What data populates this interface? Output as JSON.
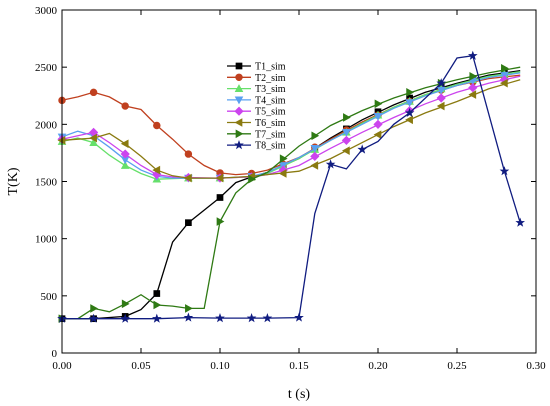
{
  "chart_data": {
    "type": "line",
    "xlabel": "t (s)",
    "ylabel": "T(K)",
    "xlim": [
      0,
      0.3
    ],
    "ylim": [
      0,
      3000
    ],
    "xticks": [
      0,
      0.05,
      0.1,
      0.15,
      0.2,
      0.25,
      0.3
    ],
    "xtick_labels": [
      "0.00",
      "0.05",
      "0.10",
      "0.15",
      "0.20",
      "0.25",
      "0.30"
    ],
    "yticks": [
      0,
      500,
      1000,
      1500,
      2000,
      2500,
      3000
    ],
    "ytick_labels": [
      "0",
      "500",
      "1000",
      "1500",
      "2000",
      "2500",
      "3000"
    ],
    "grid": false,
    "legend_position": "upper-center",
    "series": [
      {
        "name": "T1_sim",
        "color": "#000000",
        "marker": "square",
        "x": [
          0,
          0.02,
          0.04,
          0.05,
          0.06,
          0.07,
          0.08,
          0.09,
          0.1,
          0.11,
          0.12,
          0.13,
          0.15,
          0.17,
          0.19,
          0.21,
          0.23,
          0.25,
          0.27,
          0.29
        ],
        "y": [
          300,
          300,
          320,
          380,
          520,
          970,
          1140,
          1250,
          1360,
          1490,
          1540,
          1580,
          1700,
          1880,
          2040,
          2170,
          2280,
          2360,
          2430,
          2470
        ],
        "marker_x": [
          0,
          0.02,
          0.04,
          0.06,
          0.08,
          0.1,
          0.12,
          0.14,
          0.16,
          0.18,
          0.2,
          0.22,
          0.24,
          0.26,
          0.28
        ],
        "marker_y": [
          300,
          300,
          320,
          520,
          1140,
          1360,
          1540,
          1630,
          1790,
          1960,
          2110,
          2230,
          2330,
          2400,
          2460
        ]
      },
      {
        "name": "T2_sim",
        "color": "#c0401f",
        "marker": "circle",
        "x": [
          0,
          0.01,
          0.02,
          0.03,
          0.04,
          0.05,
          0.06,
          0.07,
          0.08,
          0.09,
          0.1,
          0.11,
          0.12,
          0.13,
          0.15,
          0.17,
          0.19,
          0.21,
          0.23,
          0.25,
          0.27,
          0.29
        ],
        "y": [
          2210,
          2240,
          2280,
          2240,
          2160,
          2130,
          1990,
          1870,
          1740,
          1640,
          1575,
          1560,
          1570,
          1600,
          1710,
          1870,
          2020,
          2150,
          2260,
          2340,
          2400,
          2430
        ],
        "marker_x": [
          0,
          0.02,
          0.04,
          0.06,
          0.08,
          0.1,
          0.12,
          0.14,
          0.16,
          0.18,
          0.2,
          0.22,
          0.24,
          0.26,
          0.28
        ],
        "marker_y": [
          2210,
          2280,
          2160,
          1990,
          1740,
          1575,
          1570,
          1650,
          1800,
          1950,
          2080,
          2200,
          2300,
          2370,
          2420
        ]
      },
      {
        "name": "T3_sim",
        "color": "#66e06a",
        "marker": "triangle-up",
        "x": [
          0,
          0.01,
          0.02,
          0.03,
          0.04,
          0.05,
          0.06,
          0.07,
          0.08,
          0.1,
          0.12,
          0.13,
          0.15,
          0.17,
          0.19,
          0.21,
          0.23,
          0.25,
          0.27,
          0.29
        ],
        "y": [
          1850,
          1880,
          1840,
          1730,
          1640,
          1570,
          1520,
          1525,
          1530,
          1530,
          1540,
          1570,
          1700,
          1860,
          2010,
          2150,
          2260,
          2350,
          2420,
          2460
        ],
        "marker_x": [
          0,
          0.02,
          0.04,
          0.06,
          0.08,
          0.1,
          0.12,
          0.14,
          0.16,
          0.18,
          0.2,
          0.22,
          0.24,
          0.26,
          0.28
        ],
        "marker_y": [
          1850,
          1840,
          1640,
          1520,
          1530,
          1530,
          1540,
          1630,
          1780,
          1930,
          2080,
          2200,
          2310,
          2390,
          2440
        ]
      },
      {
        "name": "T4_sim",
        "color": "#5aa0f0",
        "marker": "triangle-down",
        "x": [
          0,
          0.01,
          0.02,
          0.03,
          0.04,
          0.05,
          0.06,
          0.07,
          0.08,
          0.1,
          0.12,
          0.13,
          0.15,
          0.17,
          0.19,
          0.21,
          0.23,
          0.25,
          0.27,
          0.29
        ],
        "y": [
          1890,
          1940,
          1900,
          1800,
          1690,
          1600,
          1545,
          1530,
          1530,
          1530,
          1545,
          1580,
          1710,
          1860,
          2000,
          2140,
          2250,
          2340,
          2410,
          2450
        ],
        "marker_x": [
          0,
          0.02,
          0.04,
          0.06,
          0.08,
          0.1,
          0.12,
          0.14,
          0.16,
          0.18,
          0.2,
          0.22,
          0.24,
          0.26,
          0.28
        ],
        "marker_y": [
          1890,
          1900,
          1690,
          1545,
          1530,
          1530,
          1545,
          1640,
          1790,
          1930,
          2070,
          2190,
          2300,
          2380,
          2430
        ]
      },
      {
        "name": "T5_sim",
        "color": "#cc44ee",
        "marker": "diamond",
        "x": [
          0,
          0.01,
          0.02,
          0.03,
          0.04,
          0.05,
          0.06,
          0.07,
          0.08,
          0.1,
          0.12,
          0.13,
          0.15,
          0.17,
          0.19,
          0.21,
          0.23,
          0.25,
          0.27,
          0.29
        ],
        "y": [
          1870,
          1900,
          1930,
          1840,
          1740,
          1640,
          1560,
          1540,
          1535,
          1530,
          1540,
          1560,
          1640,
          1790,
          1930,
          2060,
          2180,
          2280,
          2360,
          2420
        ],
        "marker_x": [
          0,
          0.02,
          0.04,
          0.06,
          0.08,
          0.1,
          0.12,
          0.14,
          0.16,
          0.18,
          0.2,
          0.22,
          0.24,
          0.26,
          0.28
        ],
        "marker_y": [
          1870,
          1930,
          1740,
          1560,
          1535,
          1530,
          1540,
          1600,
          1720,
          1860,
          2000,
          2120,
          2230,
          2320,
          2390
        ]
      },
      {
        "name": "T6_sim",
        "color": "#8a7a10",
        "marker": "triangle-left",
        "x": [
          0,
          0.01,
          0.02,
          0.03,
          0.04,
          0.05,
          0.06,
          0.07,
          0.08,
          0.1,
          0.12,
          0.13,
          0.15,
          0.17,
          0.19,
          0.21,
          0.23,
          0.25,
          0.27,
          0.29
        ],
        "y": [
          1860,
          1870,
          1880,
          1920,
          1830,
          1720,
          1600,
          1550,
          1530,
          1530,
          1545,
          1560,
          1590,
          1700,
          1840,
          1980,
          2100,
          2200,
          2310,
          2390
        ],
        "marker_x": [
          0,
          0.02,
          0.04,
          0.06,
          0.08,
          0.1,
          0.12,
          0.14,
          0.16,
          0.18,
          0.2,
          0.22,
          0.24,
          0.26,
          0.28
        ],
        "marker_y": [
          1860,
          1880,
          1830,
          1600,
          1530,
          1530,
          1545,
          1570,
          1640,
          1770,
          1910,
          2040,
          2160,
          2260,
          2360
        ]
      },
      {
        "name": "T7_sim",
        "color": "#2f7a14",
        "marker": "triangle-right",
        "x": [
          0,
          0.01,
          0.02,
          0.03,
          0.04,
          0.05,
          0.06,
          0.07,
          0.08,
          0.09,
          0.1,
          0.11,
          0.12,
          0.13,
          0.15,
          0.17,
          0.19,
          0.21,
          0.23,
          0.25,
          0.27,
          0.29
        ],
        "y": [
          300,
          300,
          390,
          360,
          430,
          510,
          420,
          410,
          390,
          390,
          1150,
          1400,
          1520,
          1580,
          1810,
          1990,
          2120,
          2230,
          2320,
          2390,
          2450,
          2500
        ],
        "marker_x": [
          0,
          0.02,
          0.04,
          0.06,
          0.08,
          0.1,
          0.12,
          0.14,
          0.16,
          0.18,
          0.2,
          0.22,
          0.24,
          0.26,
          0.28
        ],
        "marker_y": [
          300,
          390,
          430,
          420,
          390,
          1150,
          1520,
          1700,
          1900,
          2060,
          2180,
          2280,
          2360,
          2420,
          2490
        ]
      },
      {
        "name": "T8_sim",
        "color": "#101c80",
        "marker": "star",
        "x": [
          0,
          0.02,
          0.04,
          0.06,
          0.08,
          0.1,
          0.12,
          0.13,
          0.15,
          0.16,
          0.17,
          0.18,
          0.19,
          0.2,
          0.21,
          0.22,
          0.24,
          0.25,
          0.26,
          0.28,
          0.29
        ],
        "y": [
          300,
          300,
          300,
          300,
          310,
          305,
          305,
          305,
          310,
          1220,
          1650,
          1610,
          1780,
          1850,
          2000,
          2100,
          2360,
          2580,
          2600,
          1590,
          1140
        ],
        "marker_x": [
          0,
          0.02,
          0.04,
          0.06,
          0.08,
          0.1,
          0.12,
          0.13,
          0.15,
          0.17,
          0.19,
          0.22,
          0.24,
          0.26,
          0.28,
          0.29
        ],
        "marker_y": [
          300,
          300,
          300,
          300,
          310,
          305,
          305,
          305,
          310,
          1650,
          1780,
          2100,
          2360,
          2600,
          1590,
          1140
        ]
      }
    ]
  }
}
